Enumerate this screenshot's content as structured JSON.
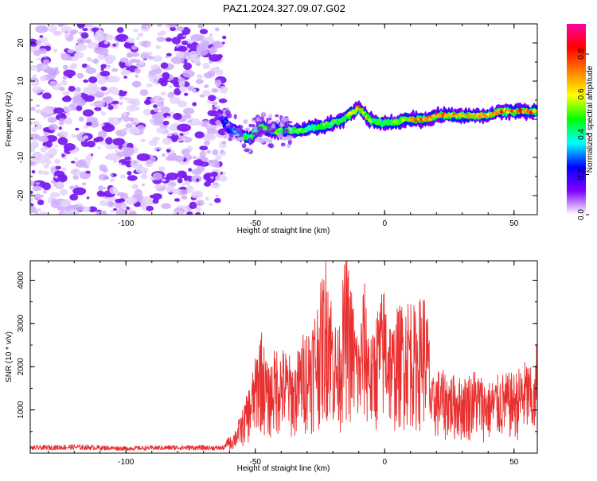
{
  "chart_data": [
    {
      "type": "heatmap",
      "title": "PAZ1.2024.327.09.07.G02",
      "xlabel": "Height of straight line (km)",
      "ylabel": "Frequency (Hz)",
      "xlim": [
        -137,
        59
      ],
      "ylim": [
        -25,
        25
      ],
      "x_ticks": [
        "-100",
        "-50",
        "0",
        "50"
      ],
      "y_ticks": [
        "20",
        "10",
        "0",
        "-10",
        "-20"
      ],
      "colorbar": {
        "label": "Normalized spectral amplitude",
        "range": [
          0,
          0.95
        ],
        "ticks": [
          "0.0",
          "0.2",
          "0.4",
          "0.6",
          "0.8"
        ],
        "colormap": [
          "#ffffff",
          "#8000ff",
          "#0000ff",
          "#00ffff",
          "#00ff00",
          "#ffff00",
          "#ff8000",
          "#ff0000",
          "#ff00a0"
        ]
      },
      "noise_region": {
        "x_range": [
          -137,
          -62
        ],
        "freq_range": [
          -25,
          25
        ],
        "amplitude": "low"
      },
      "signal_trace": {
        "x": [
          -64,
          -60,
          -56,
          -52,
          -48,
          -44,
          -40,
          -36,
          -32,
          -28,
          -24,
          -20,
          -16,
          -12,
          -10,
          -6,
          -2,
          0,
          4,
          8,
          12,
          16,
          20,
          24,
          28,
          32,
          36,
          40,
          44,
          48,
          52,
          56,
          59
        ],
        "freq": [
          1,
          -2,
          -4,
          -5,
          -2,
          -3,
          -3,
          -3,
          -3,
          -2,
          -2,
          -1,
          0,
          2,
          3,
          0,
          -1,
          -1,
          -1,
          0,
          0,
          0,
          1,
          1,
          1,
          1,
          1,
          1,
          2,
          2,
          2,
          2,
          2
        ],
        "amplitude": [
          0.2,
          0.3,
          0.4,
          0.45,
          0.5,
          0.55,
          0.5,
          0.55,
          0.5,
          0.45,
          0.55,
          0.5,
          0.55,
          0.6,
          0.7,
          0.55,
          0.5,
          0.5,
          0.55,
          0.6,
          0.8,
          0.75,
          0.8,
          0.7,
          0.7,
          0.65,
          0.7,
          0.75,
          0.8,
          0.8,
          0.8,
          0.8,
          0.75
        ]
      }
    },
    {
      "type": "line",
      "xlabel": "Height of straight line (km)",
      "ylabel": "SNR (10 * v/v)",
      "xlim": [
        -137,
        59
      ],
      "ylim": [
        0,
        4450
      ],
      "x_ticks": [
        "-100",
        "-50",
        "0",
        "50"
      ],
      "y_ticks": [
        "1000",
        "2000",
        "3000",
        "4000"
      ],
      "color": "#e83030",
      "series": [
        {
          "x": [
            -137,
            -120,
            -100,
            -80,
            -62,
            -58,
            -55,
            -52,
            -50,
            -48,
            -45,
            -42,
            -38,
            -35,
            -32,
            -28,
            -25,
            -22,
            -20,
            -18,
            -15,
            -12,
            -10,
            -8,
            -5,
            -3,
            0,
            3,
            5,
            8,
            10,
            12,
            15,
            17,
            18,
            20,
            25,
            30,
            35,
            40,
            45,
            50,
            55,
            58,
            59
          ],
          "y": [
            120,
            140,
            110,
            130,
            120,
            500,
            900,
            1500,
            2000,
            2750,
            1800,
            2300,
            2200,
            1900,
            2500,
            2900,
            3500,
            4400,
            3000,
            2600,
            4350,
            3200,
            2500,
            3700,
            2400,
            3100,
            3600,
            2700,
            3100,
            3300,
            3400,
            3000,
            3550,
            2800,
            1500,
            1800,
            1700,
            1600,
            1800,
            1500,
            1700,
            1700,
            2000,
            1600,
            2700
          ]
        }
      ]
    }
  ]
}
